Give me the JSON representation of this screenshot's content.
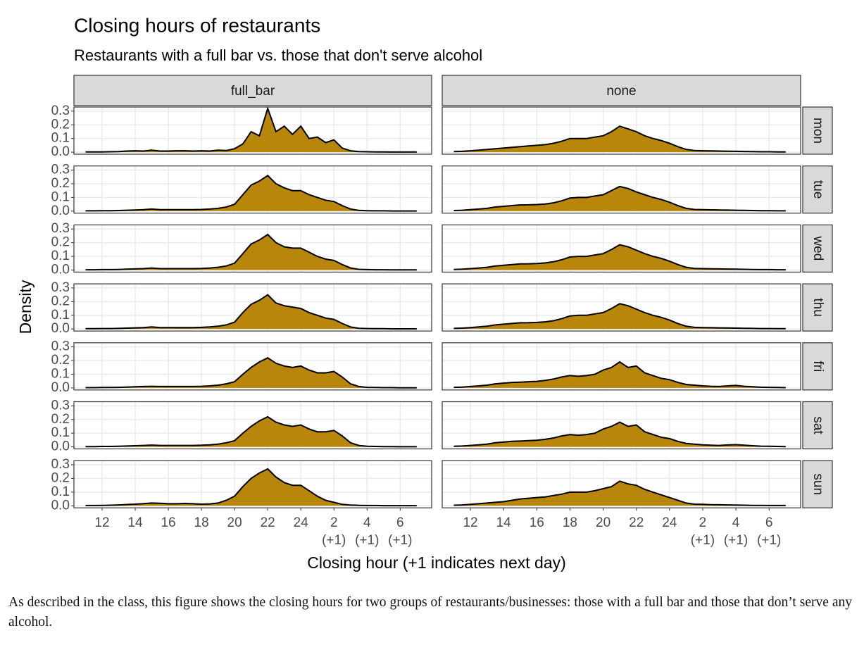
{
  "chart_data": {
    "type": "density",
    "title": "Closing hours of restaurants",
    "subtitle": "Restaurants with a full bar vs. those that don't serve alcohol",
    "xlabel": "Closing hour (+1 indicates next day)",
    "ylabel": "Density",
    "color": "#b8860b",
    "grid": true,
    "xlim": [
      10.3,
      31.9
    ],
    "ylim": [
      -0.015,
      0.33
    ],
    "xticks": [
      12,
      14,
      16,
      18,
      20,
      22,
      24,
      {
        "value": 26,
        "label": "2\n(+1)"
      },
      {
        "value": 28,
        "label": "4\n(+1)"
      },
      {
        "value": 30,
        "label": "6\n(+1)"
      }
    ],
    "yticks": [
      {
        "value": 0,
        "label": "0.0"
      },
      0.1,
      0.2,
      0.3
    ],
    "rows": [
      "mon",
      "tue",
      "wed",
      "thu",
      "fri",
      "sat",
      "sun"
    ],
    "x": [
      11,
      11.5,
      12,
      12.5,
      13,
      13.5,
      14,
      14.5,
      15,
      15.5,
      16,
      16.5,
      17,
      17.5,
      18,
      18.5,
      19,
      19.5,
      20,
      20.5,
      21,
      21.5,
      22,
      22.5,
      23,
      23.5,
      24,
      24.5,
      25,
      25.5,
      26,
      26.5,
      27,
      27.5,
      28,
      28.5,
      29,
      29.5,
      30,
      30.5,
      31
    ],
    "columns": [
      {
        "label": "full_bar",
        "panels": [
          {
            "values": [
              0.002,
              0.002,
              0.002,
              0.003,
              0.004,
              0.008,
              0.01,
              0.008,
              0.015,
              0.008,
              0.008,
              0.01,
              0.01,
              0.008,
              0.01,
              0.008,
              0.015,
              0.012,
              0.025,
              0.06,
              0.15,
              0.12,
              0.32,
              0.15,
              0.19,
              0.13,
              0.19,
              0.1,
              0.11,
              0.07,
              0.09,
              0.03,
              0.01,
              0.004,
              0.003,
              0.002,
              0.002,
              0.001,
              0.001,
              0.001,
              0.001
            ]
          },
          {
            "values": [
              0.002,
              0.002,
              0.003,
              0.003,
              0.004,
              0.006,
              0.008,
              0.01,
              0.015,
              0.01,
              0.01,
              0.01,
              0.01,
              0.01,
              0.012,
              0.015,
              0.02,
              0.03,
              0.05,
              0.12,
              0.19,
              0.22,
              0.26,
              0.2,
              0.17,
              0.15,
              0.15,
              0.12,
              0.1,
              0.08,
              0.07,
              0.04,
              0.015,
              0.005,
              0.003,
              0.002,
              0.002,
              0.001,
              0.001,
              0.001,
              0.001
            ]
          },
          {
            "values": [
              0.002,
              0.002,
              0.003,
              0.003,
              0.004,
              0.006,
              0.008,
              0.01,
              0.015,
              0.01,
              0.01,
              0.01,
              0.01,
              0.01,
              0.012,
              0.015,
              0.02,
              0.03,
              0.05,
              0.12,
              0.19,
              0.22,
              0.26,
              0.2,
              0.17,
              0.16,
              0.16,
              0.13,
              0.1,
              0.08,
              0.07,
              0.04,
              0.015,
              0.005,
              0.003,
              0.002,
              0.002,
              0.001,
              0.001,
              0.001,
              0.001
            ]
          },
          {
            "values": [
              0.002,
              0.002,
              0.003,
              0.003,
              0.004,
              0.006,
              0.008,
              0.01,
              0.015,
              0.01,
              0.01,
              0.01,
              0.01,
              0.01,
              0.012,
              0.015,
              0.02,
              0.03,
              0.05,
              0.12,
              0.18,
              0.21,
              0.25,
              0.19,
              0.17,
              0.16,
              0.15,
              0.12,
              0.1,
              0.08,
              0.07,
              0.04,
              0.015,
              0.005,
              0.003,
              0.002,
              0.002,
              0.001,
              0.001,
              0.001,
              0.001
            ]
          },
          {
            "values": [
              0.002,
              0.002,
              0.003,
              0.003,
              0.004,
              0.006,
              0.008,
              0.01,
              0.012,
              0.01,
              0.01,
              0.01,
              0.01,
              0.01,
              0.012,
              0.015,
              0.02,
              0.03,
              0.045,
              0.1,
              0.15,
              0.19,
              0.22,
              0.18,
              0.16,
              0.15,
              0.16,
              0.13,
              0.11,
              0.11,
              0.12,
              0.08,
              0.03,
              0.01,
              0.004,
              0.003,
              0.002,
              0.002,
              0.001,
              0.001,
              0.001
            ]
          },
          {
            "values": [
              0.002,
              0.002,
              0.003,
              0.003,
              0.004,
              0.006,
              0.008,
              0.01,
              0.013,
              0.01,
              0.01,
              0.01,
              0.01,
              0.01,
              0.012,
              0.015,
              0.02,
              0.03,
              0.045,
              0.1,
              0.15,
              0.19,
              0.22,
              0.18,
              0.16,
              0.15,
              0.16,
              0.13,
              0.11,
              0.11,
              0.12,
              0.08,
              0.03,
              0.01,
              0.004,
              0.003,
              0.002,
              0.002,
              0.001,
              0.001,
              0.001
            ]
          },
          {
            "values": [
              0.002,
              0.002,
              0.003,
              0.004,
              0.006,
              0.009,
              0.012,
              0.016,
              0.02,
              0.018,
              0.015,
              0.015,
              0.017,
              0.015,
              0.012,
              0.014,
              0.02,
              0.04,
              0.07,
              0.14,
              0.2,
              0.24,
              0.27,
              0.21,
              0.17,
              0.15,
              0.15,
              0.11,
              0.07,
              0.04,
              0.025,
              0.01,
              0.005,
              0.003,
              0.002,
              0.002,
              0.001,
              0.001,
              0.001,
              0.001,
              0.001
            ]
          }
        ]
      },
      {
        "label": "none",
        "panels": [
          {
            "values": [
              0.004,
              0.006,
              0.01,
              0.015,
              0.02,
              0.025,
              0.03,
              0.035,
              0.04,
              0.045,
              0.05,
              0.055,
              0.065,
              0.08,
              0.1,
              0.1,
              0.1,
              0.11,
              0.12,
              0.15,
              0.19,
              0.17,
              0.15,
              0.12,
              0.1,
              0.085,
              0.065,
              0.04,
              0.02,
              0.012,
              0.01,
              0.009,
              0.008,
              0.007,
              0.006,
              0.005,
              0.004,
              0.003,
              0.003,
              0.002,
              0.002
            ]
          },
          {
            "values": [
              0.004,
              0.006,
              0.01,
              0.015,
              0.02,
              0.03,
              0.035,
              0.04,
              0.045,
              0.046,
              0.048,
              0.052,
              0.06,
              0.075,
              0.095,
              0.1,
              0.1,
              0.11,
              0.12,
              0.15,
              0.18,
              0.165,
              0.14,
              0.12,
              0.1,
              0.085,
              0.065,
              0.04,
              0.02,
              0.012,
              0.01,
              0.009,
              0.008,
              0.007,
              0.006,
              0.005,
              0.004,
              0.003,
              0.003,
              0.002,
              0.002
            ]
          },
          {
            "values": [
              0.004,
              0.006,
              0.01,
              0.015,
              0.02,
              0.03,
              0.035,
              0.04,
              0.045,
              0.046,
              0.048,
              0.052,
              0.06,
              0.075,
              0.095,
              0.1,
              0.1,
              0.11,
              0.12,
              0.15,
              0.185,
              0.17,
              0.145,
              0.12,
              0.1,
              0.085,
              0.065,
              0.04,
              0.02,
              0.012,
              0.01,
              0.009,
              0.008,
              0.007,
              0.006,
              0.005,
              0.004,
              0.003,
              0.003,
              0.002,
              0.002
            ]
          },
          {
            "values": [
              0.004,
              0.006,
              0.01,
              0.015,
              0.02,
              0.03,
              0.035,
              0.04,
              0.045,
              0.046,
              0.048,
              0.052,
              0.06,
              0.075,
              0.095,
              0.1,
              0.1,
              0.11,
              0.12,
              0.15,
              0.185,
              0.17,
              0.145,
              0.12,
              0.1,
              0.085,
              0.065,
              0.04,
              0.02,
              0.012,
              0.01,
              0.009,
              0.008,
              0.007,
              0.006,
              0.005,
              0.004,
              0.003,
              0.003,
              0.002,
              0.002
            ]
          },
          {
            "values": [
              0.004,
              0.006,
              0.01,
              0.015,
              0.02,
              0.03,
              0.035,
              0.04,
              0.042,
              0.045,
              0.048,
              0.055,
              0.065,
              0.08,
              0.09,
              0.085,
              0.09,
              0.1,
              0.13,
              0.15,
              0.19,
              0.15,
              0.16,
              0.11,
              0.09,
              0.07,
              0.06,
              0.04,
              0.025,
              0.02,
              0.015,
              0.012,
              0.01,
              0.015,
              0.018,
              0.012,
              0.008,
              0.005,
              0.004,
              0.003,
              0.002
            ]
          },
          {
            "values": [
              0.004,
              0.006,
              0.01,
              0.015,
              0.02,
              0.03,
              0.035,
              0.04,
              0.042,
              0.045,
              0.048,
              0.055,
              0.065,
              0.08,
              0.09,
              0.085,
              0.09,
              0.1,
              0.13,
              0.15,
              0.18,
              0.15,
              0.16,
              0.11,
              0.09,
              0.07,
              0.06,
              0.04,
              0.025,
              0.02,
              0.015,
              0.012,
              0.01,
              0.014,
              0.016,
              0.012,
              0.008,
              0.005,
              0.004,
              0.003,
              0.002
            ]
          },
          {
            "values": [
              0.004,
              0.006,
              0.01,
              0.015,
              0.02,
              0.025,
              0.03,
              0.04,
              0.05,
              0.055,
              0.06,
              0.065,
              0.075,
              0.085,
              0.1,
              0.1,
              0.1,
              0.11,
              0.125,
              0.14,
              0.18,
              0.16,
              0.15,
              0.12,
              0.1,
              0.08,
              0.06,
              0.04,
              0.02,
              0.012,
              0.01,
              0.008,
              0.007,
              0.006,
              0.005,
              0.004,
              0.003,
              0.003,
              0.002,
              0.002,
              0.002
            ]
          }
        ]
      }
    ]
  },
  "caption": "As described in the class, this figure shows the closing hours for two groups of restaurants/businesses: those with a full bar and those that don’t serve any alcohol."
}
